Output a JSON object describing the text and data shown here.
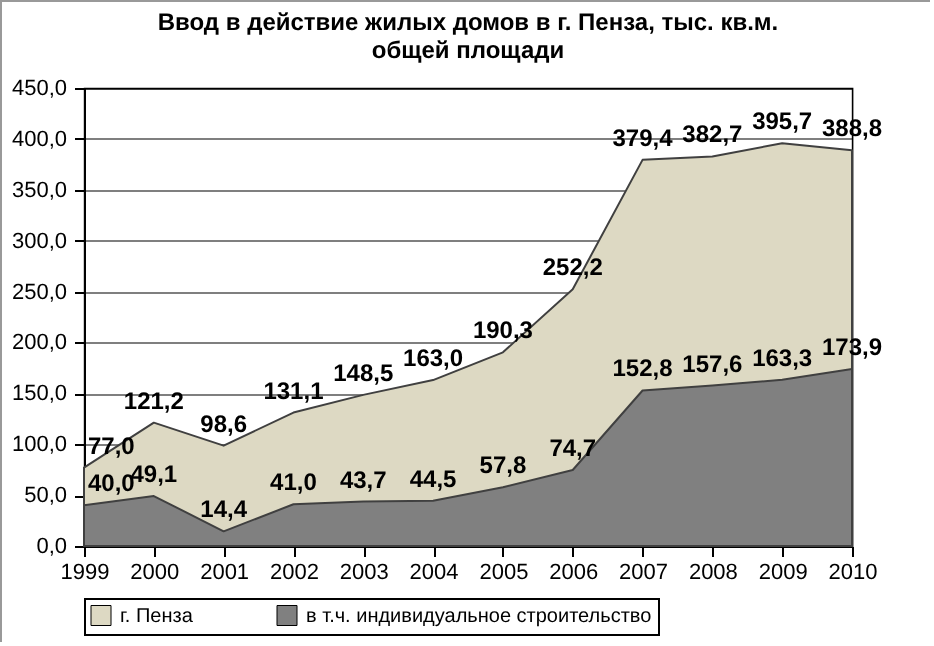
{
  "chart_data": {
    "type": "area",
    "title": "Ввод в действие жилых домов в г. Пенза, тыс. кв.м.\nобщей площади",
    "categories": [
      "1999",
      "2000",
      "2001",
      "2002",
      "2003",
      "2004",
      "2005",
      "2006",
      "2007",
      "2008",
      "2009",
      "2010"
    ],
    "series": [
      {
        "name": "г. Пенза",
        "color": "#ddd9c3",
        "values": [
          77.0,
          121.2,
          98.6,
          131.1,
          148.5,
          163.0,
          190.3,
          252.2,
          379.4,
          382.7,
          395.7,
          388.8
        ],
        "value_labels": [
          "77,0",
          "121,2",
          "98,6",
          "131,1",
          "148,5",
          "163,0",
          "190,3",
          "252,2",
          "379,4",
          "382,7",
          "395,7",
          "388,8"
        ]
      },
      {
        "name": "в т.ч. индивидуальное строительство",
        "color": "#808080",
        "values": [
          40.0,
          49.1,
          14.4,
          41.0,
          43.7,
          44.5,
          57.8,
          74.7,
          152.8,
          157.6,
          163.3,
          173.9
        ],
        "value_labels": [
          "40,0",
          "49,1",
          "14,4",
          "41,0",
          "43,7",
          "44,5",
          "57,8",
          "74,7",
          "152,8",
          "157,6",
          "163,3",
          "173,9"
        ]
      }
    ],
    "ylim": [
      0,
      450
    ],
    "yticks": [
      {
        "value": 0,
        "label": "0,0"
      },
      {
        "value": 50,
        "label": "50,0"
      },
      {
        "value": 100,
        "label": "100,0"
      },
      {
        "value": 150,
        "label": "150,0"
      },
      {
        "value": 200,
        "label": "200,0"
      },
      {
        "value": 250,
        "label": "250,0"
      },
      {
        "value": 300,
        "label": "300,0"
      },
      {
        "value": 350,
        "label": "350,0"
      },
      {
        "value": 400,
        "label": "400,0"
      },
      {
        "value": 450,
        "label": "450,0"
      }
    ],
    "grid": "y",
    "legend": "bottom"
  }
}
